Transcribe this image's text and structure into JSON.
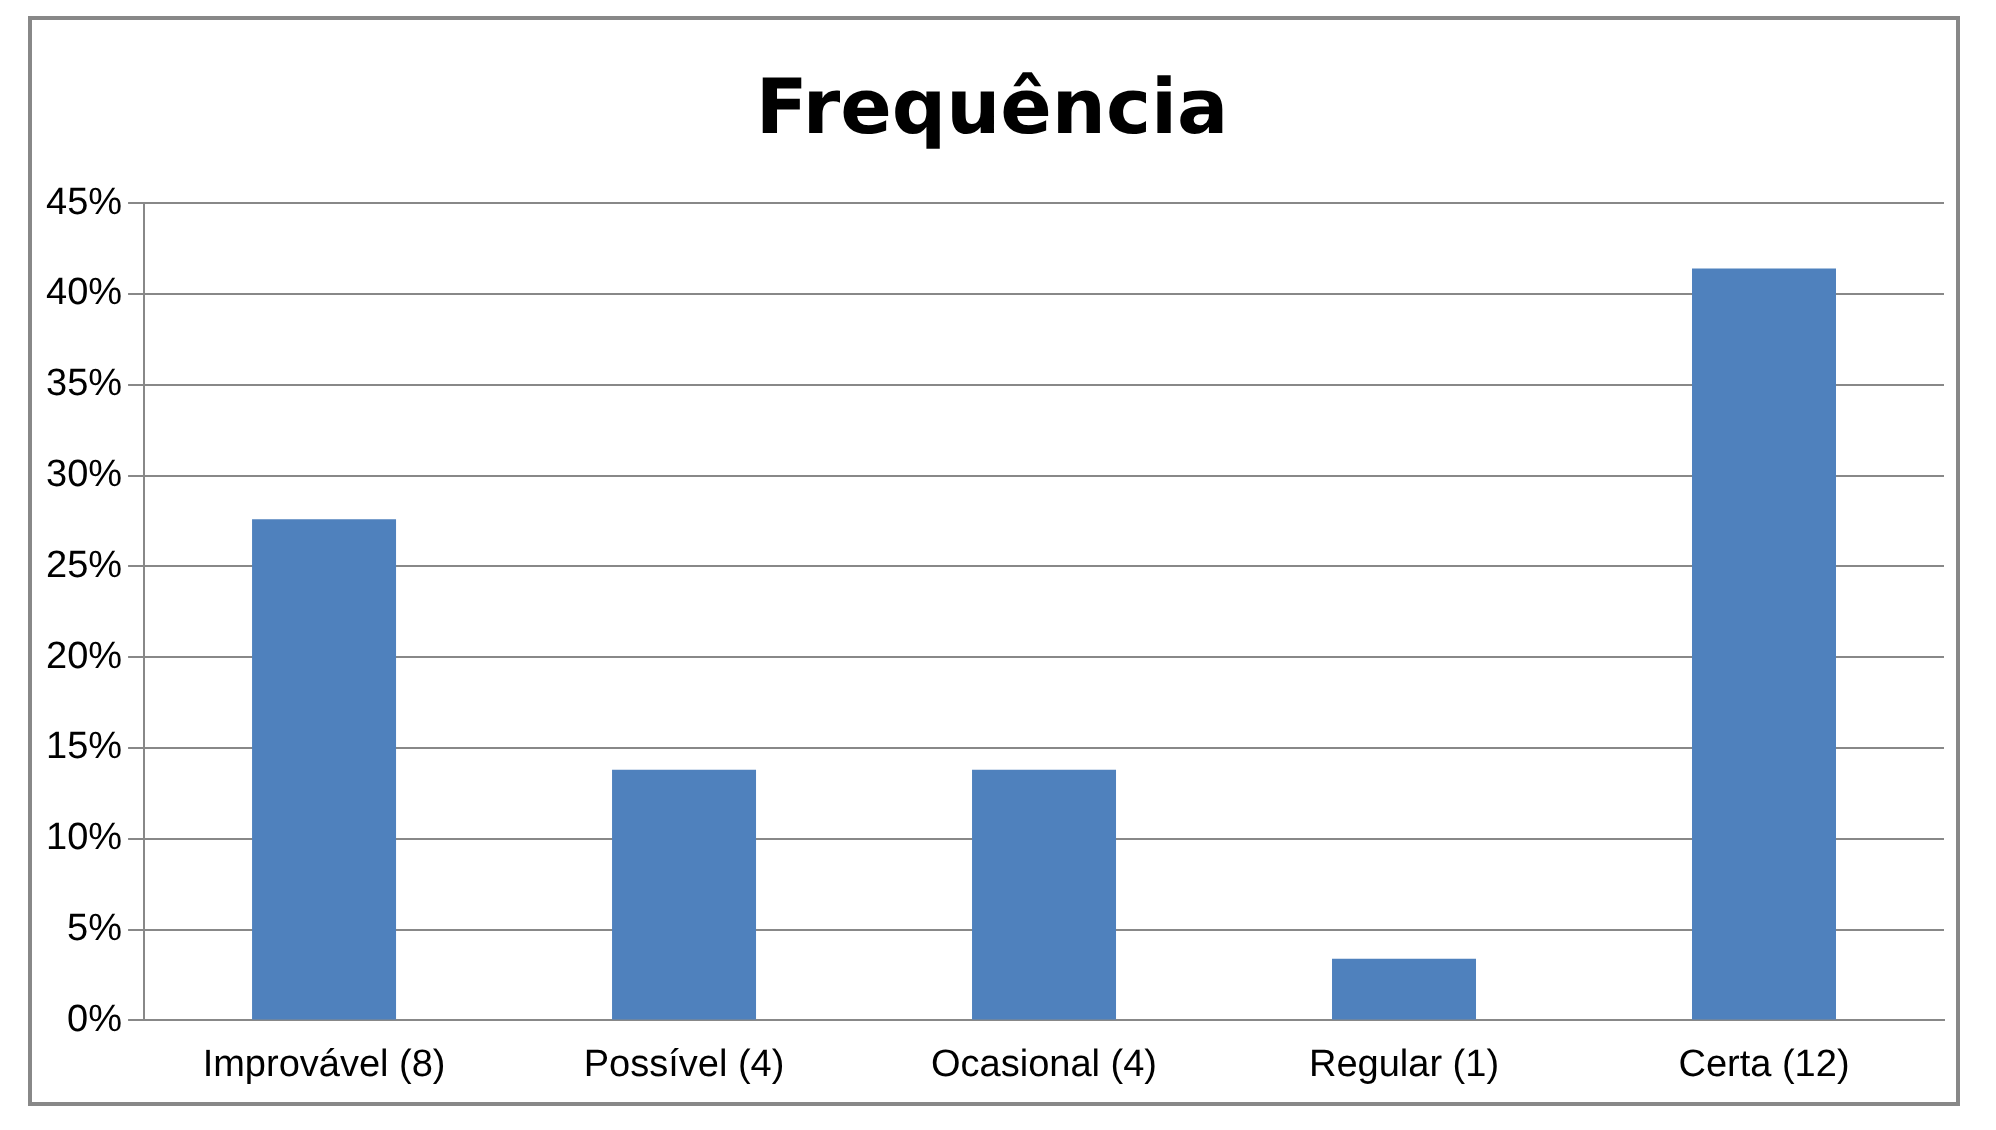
{
  "chart_data": {
    "type": "bar",
    "title": "Frequência",
    "categories": [
      "Improvável (8)",
      "Possível (4)",
      "Ocasional (4)",
      "Regular (1)",
      "Certa (12)"
    ],
    "values": [
      27.6,
      13.8,
      13.8,
      3.4,
      41.4
    ],
    "color": "#4f81bd",
    "ylim": [
      0,
      45
    ],
    "yticks": [
      {
        "value": 0,
        "label": "0%"
      },
      {
        "value": 5,
        "label": "5%"
      },
      {
        "value": 10,
        "label": "10%"
      },
      {
        "value": 15,
        "label": "15%"
      },
      {
        "value": 20,
        "label": "20%"
      },
      {
        "value": 25,
        "label": "25%"
      },
      {
        "value": 30,
        "label": "30%"
      },
      {
        "value": 35,
        "label": "35%"
      },
      {
        "value": 40,
        "label": "40%"
      },
      {
        "value": 45,
        "label": "45%"
      }
    ],
    "grid": "y",
    "legend": false
  }
}
